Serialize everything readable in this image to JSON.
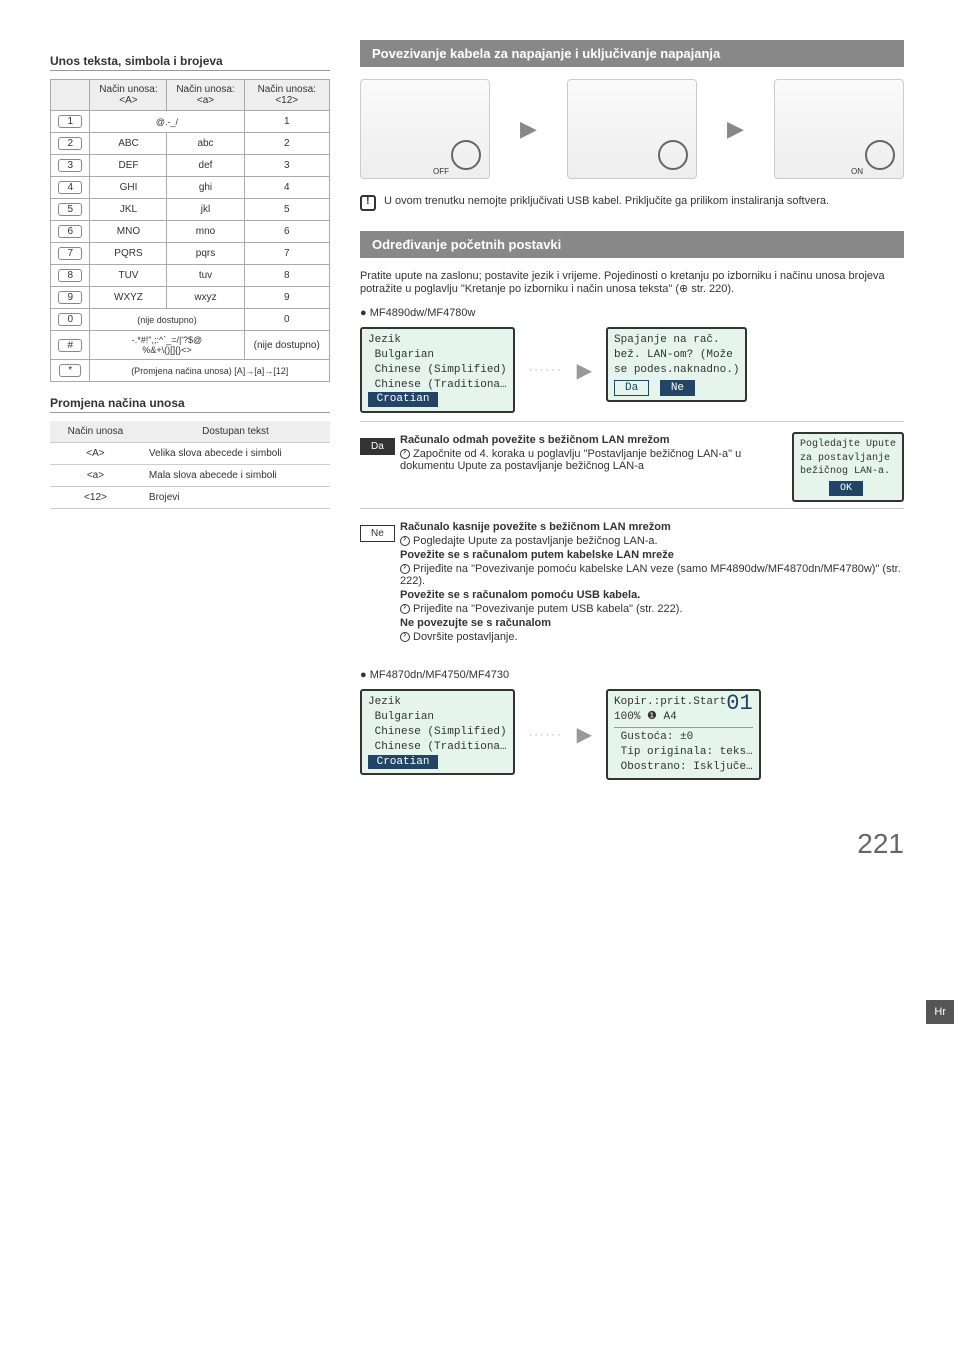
{
  "left": {
    "table_title": "Unos teksta, simbola i brojeva",
    "headers": {
      "keycol": "",
      "A": "Način unosa:\n<A>",
      "a": "Način unosa:\n<a>",
      "n": "Način unosa:\n<12>"
    },
    "rows": [
      {
        "key": "1",
        "A": "@.-_/",
        "a": "",
        "n": "1",
        "span": true
      },
      {
        "key": "2",
        "A": "ABC",
        "a": "abc",
        "n": "2"
      },
      {
        "key": "3",
        "A": "DEF",
        "a": "def",
        "n": "3"
      },
      {
        "key": "4",
        "A": "GHI",
        "a": "ghi",
        "n": "4"
      },
      {
        "key": "5",
        "A": "JKL",
        "a": "jkl",
        "n": "5"
      },
      {
        "key": "6",
        "A": "MNO",
        "a": "mno",
        "n": "6"
      },
      {
        "key": "7",
        "A": "PQRS",
        "a": "pqrs",
        "n": "7"
      },
      {
        "key": "8",
        "A": "TUV",
        "a": "tuv",
        "n": "8"
      },
      {
        "key": "9",
        "A": "WXYZ",
        "a": "wxyz",
        "n": "9"
      },
      {
        "key": "0",
        "A": "(nije dostupno)",
        "a": "",
        "n": "0",
        "span": true
      },
      {
        "key": "#",
        "A": "-.*#!\",;:^`_=/|'?$@\n%&+\\()[]{}<>",
        "a": "",
        "n": "(nije dostupno)",
        "span": true
      },
      {
        "key": "*",
        "A": "(Promjena načina unosa) [A]→[a]→[12]",
        "a": "",
        "n": "",
        "full": true
      }
    ],
    "mode_title": "Promjena načina unosa",
    "mode_headers": {
      "c1": "Način unosa",
      "c2": "Dostupan tekst"
    },
    "mode_rows": [
      {
        "m": "<A>",
        "t": "Velika slova abecede i simboli"
      },
      {
        "m": "<a>",
        "t": "Mala slova abecede i simboli"
      },
      {
        "m": "<12>",
        "t": "Brojevi"
      }
    ]
  },
  "right": {
    "banner1": "Povezivanje kabela za napajanje i uključivanje napajanja",
    "off": "OFF",
    "on": "ON",
    "usb_note": "U ovom trenutku nemojte priključivati USB kabel. Priključite ga prilikom instaliranja softvera.",
    "banner2": "Određivanje početnih postavki",
    "intro": "Pratite upute na zaslonu; postavite jezik i vrijeme. Pojedinosti o kretanju po izborniku i načinu unosa brojeva potražite u poglavlju \"Kretanje po izborniku i način unosa teksta\" (⊕ str. 220).",
    "model1": "MF4890dw/MF4780w",
    "lcd1": {
      "title": "Jezik",
      "l1": "Bulgarian",
      "l2": "Chinese (Simplified)",
      "l3": "Chinese (Traditiona…",
      "sel": "Croatian"
    },
    "lcd2": {
      "l1": "Spajanje na rač.",
      "l2": "bež. LAN-om? (Može",
      "l3": "se podes.naknadno.)",
      "b1": "Da",
      "b2": "Ne"
    },
    "da": "Da",
    "ne": "Ne",
    "da_block": {
      "h": "Računalo odmah povežite s bežičnom LAN mrežom",
      "p": "Započnite od 4. koraka u poglavlju \"Postavljanje bežičnog LAN-a\" u dokumentu Upute za postavljanje bežičnog LAN-a"
    },
    "lcd3": {
      "l1": "Pogledajte Upute",
      "l2": "za postavljanje",
      "l3": "bežičnog LAN-a.",
      "ok": "OK"
    },
    "ne_block": {
      "h1": "Računalo kasnije povežite s bežičnom LAN mrežom",
      "p1": "Pogledajte Upute za postavljanje bežičnog LAN-a.",
      "h2": "Povežite se s računalom putem kabelske LAN mreže",
      "p2": "Prijeđite na \"Povezivanje pomoću kabelske LAN veze (samo MF4890dw/MF4870dn/MF4780w)\" (str. 222).",
      "h3": "Povežite se s računalom pomoću USB kabela.",
      "p3": "Prijeđite na \"Povezivanje putem USB kabela\" (str. 222).",
      "h4": "Ne povezujte se s računalom",
      "p4": "Dovršite postavljanje."
    },
    "model2": "MF4870dn/MF4750/MF4730",
    "lcd4": {
      "title": "Jezik",
      "l1": "Bulgarian",
      "l2": "Chinese (Simplified)",
      "l3": "Chinese (Traditiona…",
      "sel": "Croatian"
    },
    "lcd5": {
      "l1": "Kopir.:prit.Start",
      "l2": "100%  ❶   A4",
      "big": "01",
      "l3": "Gustoća: ±0",
      "l4": "Tip originala: teks…",
      "l5": "Obostrano: Isključe…"
    }
  },
  "sidetab": "Hr",
  "pagenum": "221"
}
